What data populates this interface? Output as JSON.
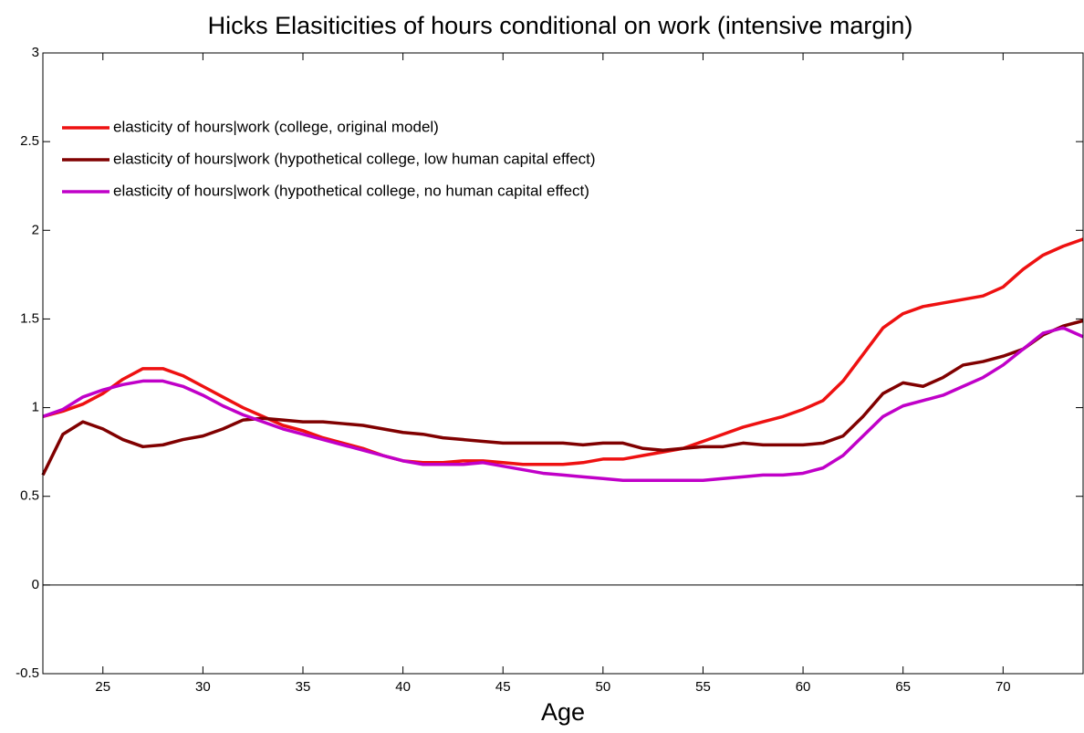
{
  "chart_data": {
    "type": "line",
    "title": "Hicks Elasiticities of hours conditional on work (intensive margin)",
    "x_label": "Age",
    "x": [
      22,
      23,
      24,
      25,
      26,
      27,
      28,
      29,
      30,
      31,
      32,
      33,
      34,
      35,
      36,
      37,
      38,
      39,
      40,
      41,
      42,
      43,
      44,
      45,
      46,
      47,
      48,
      49,
      50,
      51,
      52,
      53,
      54,
      55,
      56,
      57,
      58,
      59,
      60,
      61,
      62,
      63,
      64,
      65,
      66,
      67,
      68,
      69,
      70,
      71,
      72,
      73,
      74
    ],
    "series": [
      {
        "name": "elasticity of hours|work (college, original model)",
        "color": "#ee1111",
        "values": [
          0.95,
          0.98,
          1.02,
          1.08,
          1.16,
          1.22,
          1.22,
          1.18,
          1.12,
          1.06,
          1.0,
          0.95,
          0.9,
          0.87,
          0.83,
          0.8,
          0.77,
          0.73,
          0.7,
          0.69,
          0.69,
          0.7,
          0.7,
          0.69,
          0.68,
          0.68,
          0.68,
          0.69,
          0.71,
          0.71,
          0.73,
          0.75,
          0.77,
          0.81,
          0.85,
          0.89,
          0.92,
          0.95,
          0.99,
          1.04,
          1.15,
          1.3,
          1.45,
          1.53,
          1.57,
          1.59,
          1.61,
          1.63,
          1.68,
          1.78,
          1.86,
          1.91,
          1.95
        ]
      },
      {
        "name": "elasticity of hours|work (hypothetical college, low human capital effect)",
        "color": "#800000",
        "values": [
          0.62,
          0.85,
          0.92,
          0.88,
          0.82,
          0.78,
          0.79,
          0.82,
          0.84,
          0.88,
          0.93,
          0.94,
          0.93,
          0.92,
          0.92,
          0.91,
          0.9,
          0.88,
          0.86,
          0.85,
          0.83,
          0.82,
          0.81,
          0.8,
          0.8,
          0.8,
          0.8,
          0.79,
          0.8,
          0.8,
          0.77,
          0.76,
          0.77,
          0.78,
          0.78,
          0.8,
          0.79,
          0.79,
          0.79,
          0.8,
          0.84,
          0.95,
          1.08,
          1.14,
          1.12,
          1.17,
          1.24,
          1.26,
          1.29,
          1.33,
          1.41,
          1.46,
          1.49
        ]
      },
      {
        "name": "elasticity of hours|work (hypothetical college, no human capital effect)",
        "color": "#c000c8",
        "values": [
          0.95,
          0.99,
          1.06,
          1.1,
          1.13,
          1.15,
          1.15,
          1.12,
          1.07,
          1.01,
          0.96,
          0.92,
          0.88,
          0.85,
          0.82,
          0.79,
          0.76,
          0.73,
          0.7,
          0.68,
          0.68,
          0.68,
          0.69,
          0.67,
          0.65,
          0.63,
          0.62,
          0.61,
          0.6,
          0.59,
          0.59,
          0.59,
          0.59,
          0.59,
          0.6,
          0.61,
          0.62,
          0.62,
          0.63,
          0.66,
          0.73,
          0.84,
          0.95,
          1.01,
          1.04,
          1.07,
          1.12,
          1.17,
          1.24,
          1.33,
          1.42,
          1.45,
          1.4
        ]
      }
    ],
    "xlim": [
      22,
      74
    ],
    "xticks": [
      25,
      30,
      35,
      40,
      45,
      50,
      55,
      60,
      65,
      70
    ],
    "ylim": [
      -0.5,
      3
    ],
    "yticks": [
      -0.5,
      0,
      0.5,
      1,
      1.5,
      2,
      2.5,
      3
    ],
    "legend": "upper-left"
  }
}
